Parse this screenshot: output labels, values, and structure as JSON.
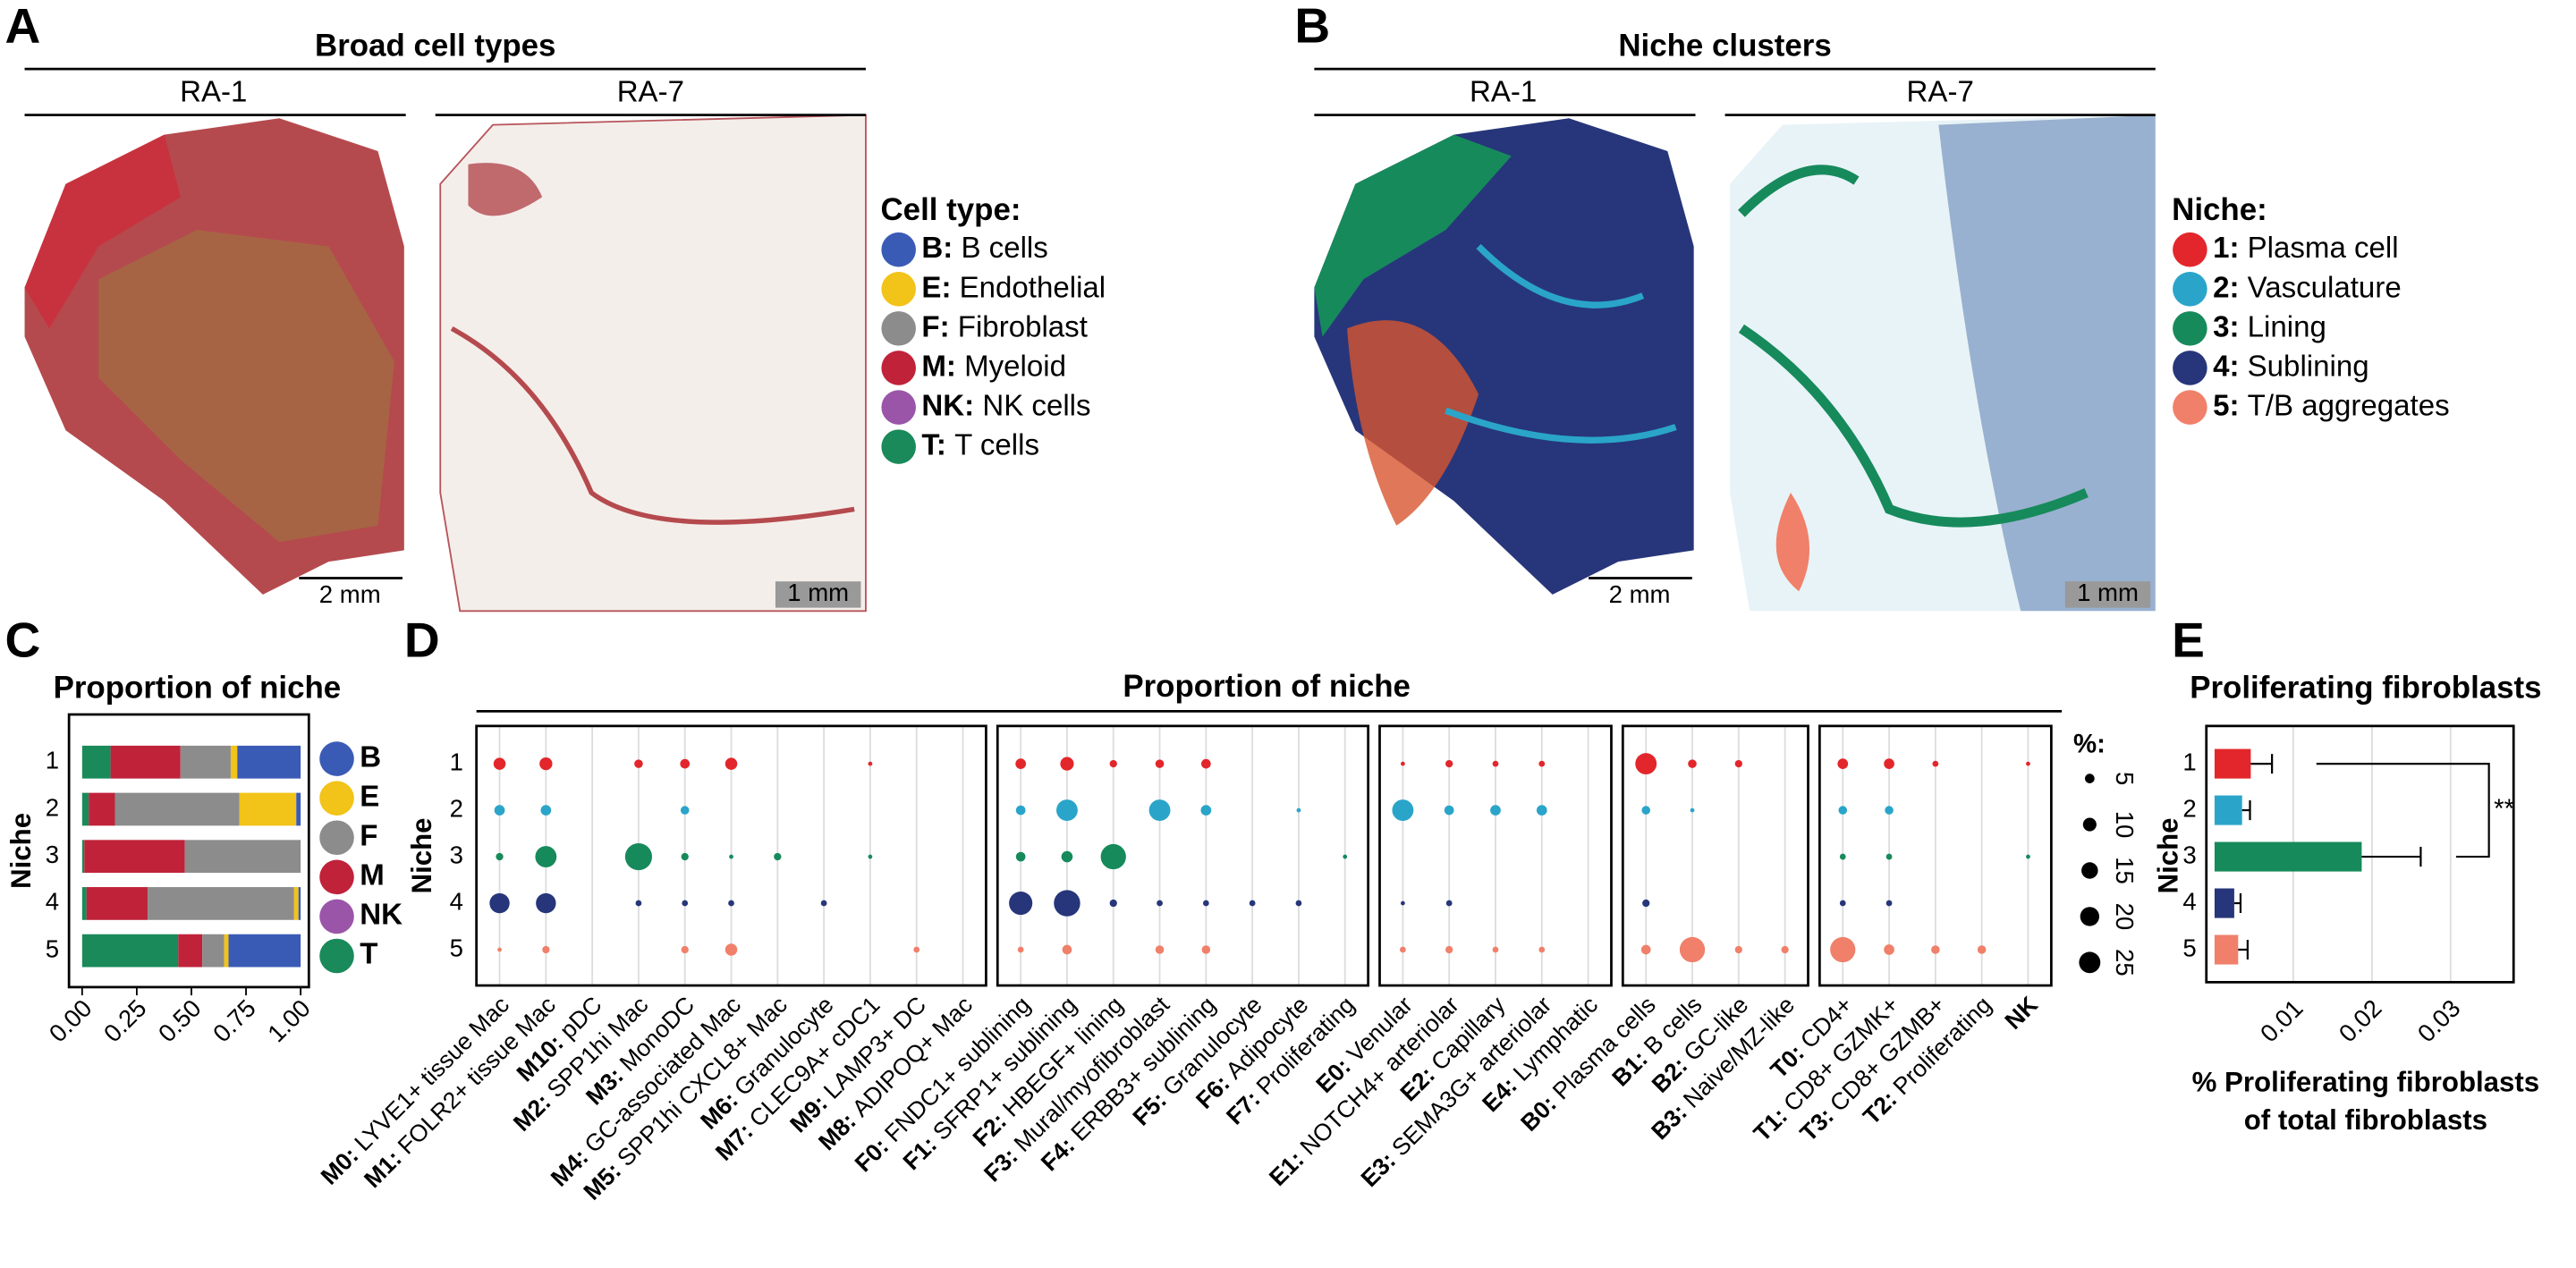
{
  "panels": {
    "A": {
      "letter": "A",
      "title": "Broad cell types",
      "samples": [
        "RA-1",
        "RA-7"
      ],
      "scale_bars": [
        "2 mm",
        "1 mm"
      ],
      "legend_title": "Cell type:",
      "legend": [
        {
          "key": "B:",
          "label": "B cells",
          "color": "#3a5bb5"
        },
        {
          "key": "E:",
          "label": "Endothelial",
          "color": "#f2c318"
        },
        {
          "key": "F:",
          "label": "Fibroblast",
          "color": "#8c8c8c"
        },
        {
          "key": "M:",
          "label": "Myeloid",
          "color": "#c0223a"
        },
        {
          "key": "NK:",
          "label": "NK cells",
          "color": "#9a55a8"
        },
        {
          "key": "T:",
          "label": "T cells",
          "color": "#1a8a5a"
        }
      ]
    },
    "B": {
      "letter": "B",
      "title": "Niche clusters",
      "samples": [
        "RA-1",
        "RA-7"
      ],
      "scale_bars": [
        "2 mm",
        "1 mm"
      ],
      "legend_title": "Niche:",
      "legend": [
        {
          "key": "1:",
          "label": "Plasma cell",
          "color": "#e3262b"
        },
        {
          "key": "2:",
          "label": "Vasculature",
          "color": "#2aa5c9"
        },
        {
          "key": "3:",
          "label": "Lining",
          "color": "#178a5c"
        },
        {
          "key": "4:",
          "label": "Sublining",
          "color": "#27367a"
        },
        {
          "key": "5:",
          "label": "T/B aggregates",
          "color": "#f0806a"
        }
      ]
    }
  },
  "chart_data": [
    {
      "panel": "C",
      "type": "stacked_bar",
      "title": "Proportion of niche",
      "ylabel": "Niche",
      "categories": [
        "1",
        "2",
        "3",
        "4",
        "5"
      ],
      "series": [
        {
          "name": "B",
          "color": "#3a5bb5",
          "values": [
            0.29,
            0.02,
            0,
            0.01,
            0.33
          ]
        },
        {
          "name": "E",
          "color": "#f2c318",
          "values": [
            0.03,
            0.26,
            0,
            0.02,
            0.02
          ]
        },
        {
          "name": "F",
          "color": "#8c8c8c",
          "values": [
            0.23,
            0.57,
            0.53,
            0.67,
            0.1
          ]
        },
        {
          "name": "M",
          "color": "#c0223a",
          "values": [
            0.32,
            0.12,
            0.46,
            0.28,
            0.11
          ]
        },
        {
          "name": "NK",
          "color": "#9a55a8",
          "values": [
            0,
            0,
            0,
            0,
            0
          ]
        },
        {
          "name": "T",
          "color": "#1a8a5a",
          "values": [
            0.13,
            0.03,
            0.01,
            0.02,
            0.44
          ]
        }
      ],
      "xlim": [
        0,
        1
      ],
      "xticks": [
        {
          "value": 0,
          "label": "0.00"
        },
        {
          "value": 0.25,
          "label": "0.25"
        },
        {
          "value": 0.5,
          "label": "0.50"
        },
        {
          "value": 0.75,
          "label": "0.75"
        },
        {
          "value": 1,
          "label": "1.00"
        }
      ]
    },
    {
      "panel": "D",
      "type": "dot",
      "title": "Proportion of niche",
      "ylabel": "Niche",
      "categories": [
        [
          {
            "id": "M0:",
            "name": "LYVE1+ tissue Mac"
          },
          {
            "id": "M1:",
            "name": "FOLR2+ tissue Mac"
          },
          {
            "id": "M10:",
            "name": "pDC"
          },
          {
            "id": "M2:",
            "name": "SPP1hi Mac"
          },
          {
            "id": "M3:",
            "name": "MonoDC"
          },
          {
            "id": "M4:",
            "name": "GC-associated Mac"
          },
          {
            "id": "M5:",
            "name": "SPP1hi CXCL8+ Mac"
          },
          {
            "id": "M6:",
            "name": "Granulocyte"
          },
          {
            "id": "M7:",
            "name": "CLEC9A+ cDC1"
          },
          {
            "id": "M9:",
            "name": "LAMP3+ DC"
          },
          {
            "id": "M8:",
            "name": "ADIPOQ+ Mac"
          }
        ],
        [
          {
            "id": "F0:",
            "name": "FNDC1+ sublining"
          },
          {
            "id": "F1:",
            "name": "SFRP1+ sublining"
          },
          {
            "id": "F2:",
            "name": "HBEGF+ lining"
          },
          {
            "id": "F3:",
            "name": "Mural/myofibroblast"
          },
          {
            "id": "F4:",
            "name": "ERBB3+ sublining"
          },
          {
            "id": "F5:",
            "name": "Granulocyte"
          },
          {
            "id": "F6:",
            "name": "Adipocyte"
          },
          {
            "id": "F7:",
            "name": "Proliferating"
          }
        ],
        [
          {
            "id": "E0:",
            "name": "Venular"
          },
          {
            "id": "E1:",
            "name": "NOTCH4+ arteriolar"
          },
          {
            "id": "E2:",
            "name": "Capillary"
          },
          {
            "id": "E3:",
            "name": "SEMA3G+ arteriolar"
          },
          {
            "id": "E4:",
            "name": "Lymphatic"
          }
        ],
        [
          {
            "id": "B0:",
            "name": "Plasma cells"
          },
          {
            "id": "B1:",
            "name": "B cells"
          },
          {
            "id": "B2:",
            "name": "GC-like"
          },
          {
            "id": "B3:",
            "name": "Naive/MZ-like"
          }
        ],
        [
          {
            "id": "T0:",
            "name": "CD4+"
          },
          {
            "id": "T1:",
            "name": "CD8+ GZMK+"
          },
          {
            "id": "T3:",
            "name": "CD8+ GZMB+"
          },
          {
            "id": "T2:",
            "name": "Proliferating"
          },
          {
            "id": "NK"
          }
        ]
      ],
      "series": [
        {
          "name": "1",
          "color": "#e3262b",
          "values": [
            [
              8,
              9,
              0,
              4,
              5,
              8,
              0,
              0,
              1,
              0,
              0
            ],
            [
              6,
              10,
              3,
              4,
              5,
              0,
              0,
              0
            ],
            [
              1,
              3,
              2,
              2,
              0
            ],
            [
              25,
              4,
              3,
              0
            ],
            [
              6,
              6,
              2,
              0,
              1
            ]
          ]
        },
        {
          "name": "2",
          "color": "#2aa5c9",
          "values": [
            [
              6,
              6,
              0,
              0,
              4,
              0,
              0,
              0,
              0,
              0,
              0
            ],
            [
              5,
              25,
              0,
              25,
              6,
              0,
              1,
              0
            ],
            [
              25,
              5,
              6,
              6,
              0
            ],
            [
              4,
              1,
              0,
              0
            ],
            [
              4,
              4,
              0,
              0,
              0
            ]
          ]
        },
        {
          "name": "3",
          "color": "#178a5c",
          "values": [
            [
              3,
              25,
              0,
              40,
              3,
              1,
              3,
              0,
              1,
              0,
              0
            ],
            [
              5,
              7,
              35,
              0,
              0,
              0,
              0,
              1
            ],
            [
              0,
              0,
              0,
              0,
              0
            ],
            [
              0,
              0,
              0,
              0
            ],
            [
              2,
              2,
              0,
              0,
              1
            ]
          ]
        },
        {
          "name": "4",
          "color": "#27367a",
          "values": [
            [
              22,
              22,
              0,
              2,
              2,
              2,
              0,
              2,
              0,
              0,
              0
            ],
            [
              30,
              38,
              3,
              2,
              2,
              2,
              2,
              0
            ],
            [
              1,
              2,
              0,
              0,
              0
            ],
            [
              3,
              0,
              0,
              0
            ],
            [
              2,
              2,
              0,
              0,
              0
            ]
          ]
        },
        {
          "name": "5",
          "color": "#f0806a",
          "values": [
            [
              1,
              3,
              0,
              0,
              3,
              8,
              0,
              0,
              0,
              2,
              0
            ],
            [
              2,
              5,
              0,
              4,
              4,
              0,
              0,
              0
            ],
            [
              2,
              3,
              2,
              2,
              0
            ],
            [
              5,
              35,
              3,
              3
            ],
            [
              35,
              6,
              4,
              4,
              0
            ]
          ]
        }
      ],
      "size_legend": {
        "title": "%:",
        "values": [
          5,
          10,
          15,
          20,
          25
        ]
      }
    },
    {
      "panel": "E",
      "type": "hbar",
      "title": "Proliferating fibroblasts",
      "ylabel": "Niche",
      "xlabel": [
        "% Proliferating fibroblasts",
        "of total fibroblasts"
      ],
      "categories": [
        "1",
        "2",
        "3",
        "4",
        "5"
      ],
      "values": [
        0.0046,
        0.0035,
        0.0187,
        0.0025,
        0.003
      ],
      "errors": [
        0.0027,
        0.001,
        0.0075,
        0.0008,
        0.0012
      ],
      "colors": [
        "#e3262b",
        "#2aa5c9",
        "#178a5c",
        "#27367a",
        "#f0806a"
      ],
      "xlim": [
        0,
        0.038
      ],
      "xticks": [
        0.01,
        0.02,
        0.03
      ],
      "grid": true,
      "annotation": "**"
    }
  ]
}
